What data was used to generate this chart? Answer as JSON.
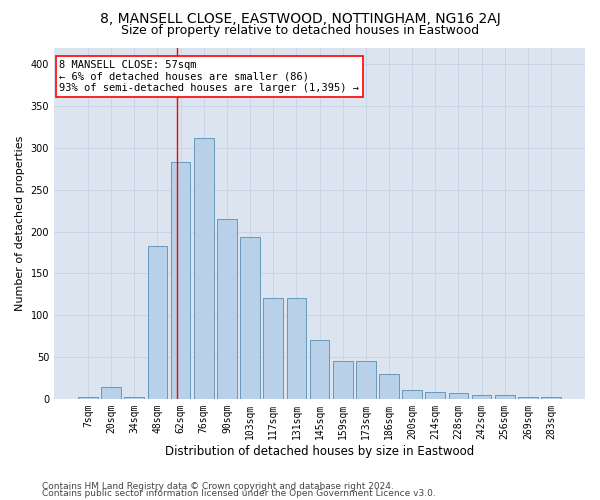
{
  "title1": "8, MANSELL CLOSE, EASTWOOD, NOTTINGHAM, NG16 2AJ",
  "title2": "Size of property relative to detached houses in Eastwood",
  "xlabel": "Distribution of detached houses by size in Eastwood",
  "ylabel": "Number of detached properties",
  "categories": [
    "7sqm",
    "20sqm",
    "34sqm",
    "48sqm",
    "62sqm",
    "76sqm",
    "90sqm",
    "103sqm",
    "117sqm",
    "131sqm",
    "145sqm",
    "159sqm",
    "173sqm",
    "186sqm",
    "200sqm",
    "214sqm",
    "228sqm",
    "242sqm",
    "256sqm",
    "269sqm",
    "283sqm"
  ],
  "values": [
    2,
    14,
    2,
    183,
    283,
    312,
    215,
    193,
    120,
    120,
    70,
    45,
    45,
    30,
    10,
    8,
    7,
    5,
    5,
    2,
    2
  ],
  "bar_color": "#b8d0e8",
  "bar_edge_color": "#6699bb",
  "vline_color": "red",
  "vline_x_index": 3.85,
  "annotation_text": "8 MANSELL CLOSE: 57sqm\n← 6% of detached houses are smaller (86)\n93% of semi-detached houses are larger (1,395) →",
  "annotation_box_color": "white",
  "annotation_box_edge_color": "red",
  "ylim_max": 420,
  "yticks": [
    0,
    50,
    100,
    150,
    200,
    250,
    300,
    350,
    400
  ],
  "grid_color": "#c8d4e8",
  "background_color": "#dce4f0",
  "footer1": "Contains HM Land Registry data © Crown copyright and database right 2024.",
  "footer2": "Contains public sector information licensed under the Open Government Licence v3.0.",
  "title1_fontsize": 10,
  "title2_fontsize": 9,
  "xlabel_fontsize": 8.5,
  "ylabel_fontsize": 8,
  "tick_fontsize": 7,
  "annotation_fontsize": 7.5,
  "footer_fontsize": 6.5
}
